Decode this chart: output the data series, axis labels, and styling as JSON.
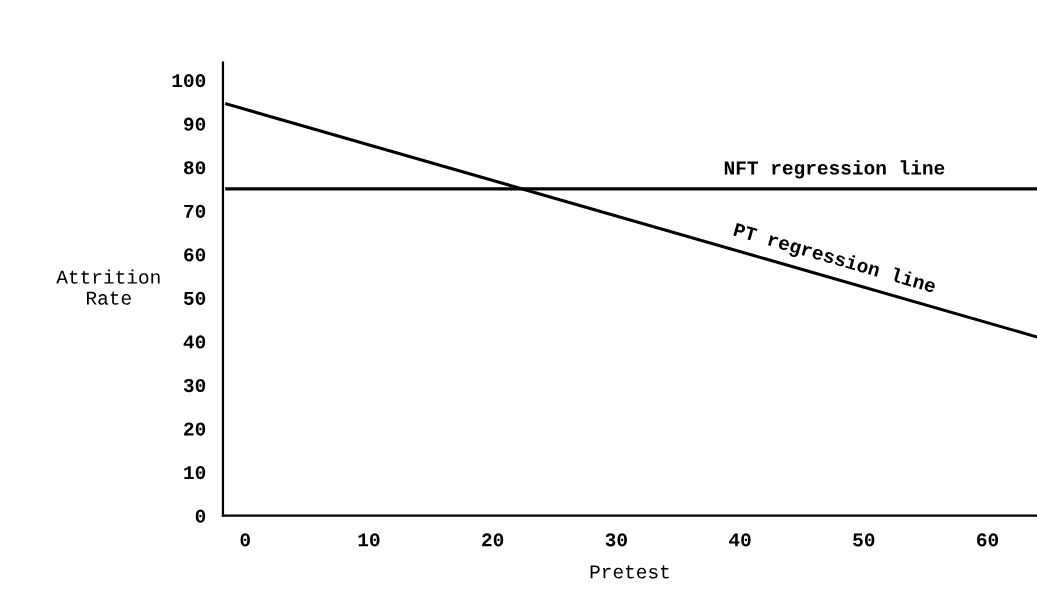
{
  "chart_data": {
    "type": "line",
    "xlabel": "Pretest",
    "ylabel": "Attrition\nRate",
    "x": [
      -1.5,
      64
    ],
    "series": [
      {
        "name": "NFT regression line",
        "color": "#000000",
        "values": [
          75,
          75
        ]
      },
      {
        "name": "PT regression line",
        "color": "#000000",
        "values": [
          94.5,
          41
        ]
      }
    ],
    "xlim": [
      -1.8,
      64
    ],
    "ylim": [
      0,
      104
    ],
    "xticks": [
      0,
      10,
      20,
      30,
      40,
      50,
      60
    ],
    "yticks": [
      0,
      10,
      20,
      30,
      40,
      50,
      60,
      70,
      80,
      90,
      100
    ],
    "grid": false,
    "legend": false,
    "marker": "none",
    "line_style": "solid"
  }
}
